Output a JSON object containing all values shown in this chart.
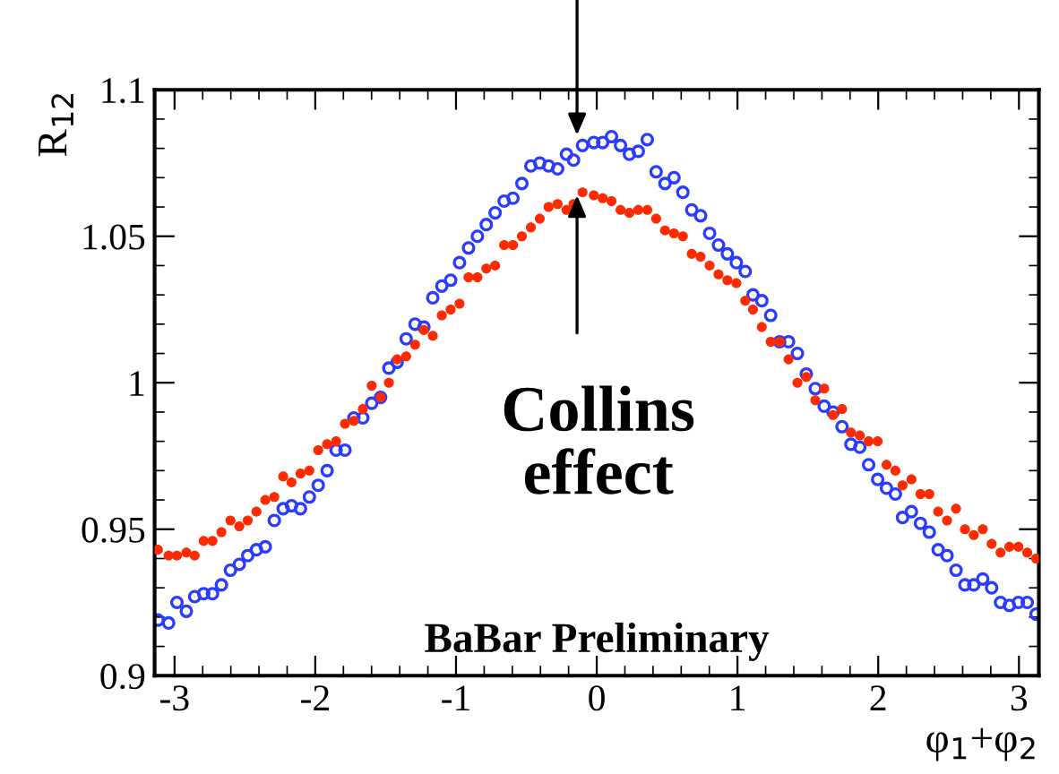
{
  "chart_data": {
    "type": "scatter",
    "xlabel": "φ$_{1}$+φ$_{2}$",
    "ylabel": "R$_{12}$",
    "marker": "circle",
    "xlim": [
      -3.1416,
      3.1416
    ],
    "ylim": [
      0.9,
      1.1
    ],
    "xticks": [
      -3,
      -2,
      -1,
      0,
      1,
      2,
      3
    ],
    "yticks": [
      0.9,
      0.95,
      1,
      1.05,
      1.1
    ],
    "grid": false,
    "legend": false,
    "annotations": [
      {
        "text": "Collins\neffect",
        "x": -0.14,
        "y": 1.064
      },
      "BaBar Preliminary"
    ],
    "series": [
      {
        "color": "#ff2a00",
        "x": [
          -3.118,
          -3.042,
          -2.983,
          -2.916,
          -2.857,
          -2.793,
          -2.73,
          -2.667,
          -2.603,
          -2.54,
          -2.48,
          -2.418,
          -2.355,
          -2.291,
          -2.228,
          -2.169,
          -2.105,
          -2.042,
          -1.979,
          -1.916,
          -1.852,
          -1.789,
          -1.726,
          -1.662,
          -1.599,
          -1.536,
          -1.477,
          -1.418,
          -1.354,
          -1.291,
          -1.228,
          -1.165,
          -1.101,
          -1.038,
          -0.975,
          -0.911,
          -0.848,
          -0.785,
          -0.722,
          -0.658,
          -0.595,
          -0.532,
          -0.468,
          -0.405,
          -0.342,
          -0.278,
          -0.215,
          -0.165,
          -0.101,
          -0.021,
          0.042,
          0.105,
          0.169,
          0.232,
          0.295,
          0.359,
          0.422,
          0.485,
          0.549,
          0.612,
          0.675,
          0.738,
          0.802,
          0.865,
          0.928,
          0.992,
          1.055,
          1.11,
          1.173,
          1.236,
          1.3,
          1.363,
          1.426,
          1.489,
          1.553,
          1.616,
          1.679,
          1.743,
          1.806,
          1.869,
          1.932,
          1.996,
          2.059,
          2.122,
          2.173,
          2.236,
          2.3,
          2.363,
          2.426,
          2.489,
          2.553,
          2.616,
          2.679,
          2.743,
          2.806,
          2.869,
          2.932,
          2.996,
          3.059,
          3.122
        ],
        "values": [
          0.943,
          0.941,
          0.941,
          0.942,
          0.941,
          0.946,
          0.946,
          0.949,
          0.953,
          0.951,
          0.953,
          0.956,
          0.96,
          0.961,
          0.968,
          0.966,
          0.969,
          0.97,
          0.977,
          0.979,
          0.98,
          0.986,
          0.987,
          0.991,
          0.999,
          0.995,
          1.0,
          1.008,
          1.009,
          1.013,
          1.018,
          1.016,
          1.023,
          1.025,
          1.027,
          1.036,
          1.036,
          1.039,
          1.04,
          1.047,
          1.047,
          1.05,
          1.053,
          1.056,
          1.06,
          1.061,
          1.059,
          1.061,
          1.065,
          1.064,
          1.063,
          1.062,
          1.059,
          1.058,
          1.059,
          1.059,
          1.056,
          1.052,
          1.051,
          1.05,
          1.044,
          1.043,
          1.04,
          1.037,
          1.035,
          1.034,
          1.028,
          1.025,
          1.019,
          1.014,
          1.014,
          1.008,
          1.0,
          1.002,
          0.994,
          0.998,
          0.989,
          0.991,
          0.983,
          0.982,
          0.98,
          0.98,
          0.972,
          0.97,
          0.965,
          0.967,
          0.962,
          0.962,
          0.956,
          0.953,
          0.957,
          0.95,
          0.948,
          0.95,
          0.945,
          0.942,
          0.944,
          0.944,
          0.942,
          0.94
        ]
      },
      {
        "color": "#2a3cff",
        "x": [
          -3.118,
          -3.042,
          -2.983,
          -2.916,
          -2.857,
          -2.793,
          -2.73,
          -2.667,
          -2.603,
          -2.54,
          -2.48,
          -2.418,
          -2.355,
          -2.291,
          -2.228,
          -2.169,
          -2.105,
          -2.042,
          -1.979,
          -1.916,
          -1.852,
          -1.789,
          -1.726,
          -1.662,
          -1.599,
          -1.536,
          -1.477,
          -1.418,
          -1.354,
          -1.291,
          -1.228,
          -1.165,
          -1.101,
          -1.038,
          -0.975,
          -0.911,
          -0.848,
          -0.785,
          -0.722,
          -0.658,
          -0.595,
          -0.532,
          -0.468,
          -0.405,
          -0.342,
          -0.278,
          -0.215,
          -0.165,
          -0.101,
          -0.021,
          0.042,
          0.105,
          0.169,
          0.232,
          0.295,
          0.359,
          0.422,
          0.485,
          0.549,
          0.612,
          0.675,
          0.738,
          0.802,
          0.865,
          0.928,
          0.992,
          1.055,
          1.11,
          1.173,
          1.236,
          1.3,
          1.363,
          1.426,
          1.489,
          1.553,
          1.616,
          1.679,
          1.743,
          1.806,
          1.869,
          1.932,
          1.996,
          2.059,
          2.122,
          2.173,
          2.236,
          2.3,
          2.363,
          2.426,
          2.489,
          2.553,
          2.616,
          2.679,
          2.743,
          2.806,
          2.869,
          2.932,
          2.996,
          3.059,
          3.122
        ],
        "values": [
          0.919,
          0.918,
          0.925,
          0.922,
          0.927,
          0.928,
          0.928,
          0.931,
          0.936,
          0.938,
          0.941,
          0.943,
          0.944,
          0.953,
          0.957,
          0.958,
          0.957,
          0.961,
          0.965,
          0.97,
          0.977,
          0.977,
          0.988,
          0.988,
          0.993,
          0.995,
          1.005,
          1.007,
          1.015,
          1.02,
          1.019,
          1.029,
          1.033,
          1.035,
          1.041,
          1.046,
          1.05,
          1.054,
          1.058,
          1.062,
          1.063,
          1.068,
          1.074,
          1.075,
          1.074,
          1.073,
          1.078,
          1.076,
          1.081,
          1.082,
          1.082,
          1.084,
          1.081,
          1.078,
          1.079,
          1.083,
          1.072,
          1.068,
          1.07,
          1.065,
          1.059,
          1.057,
          1.051,
          1.047,
          1.044,
          1.041,
          1.038,
          1.03,
          1.028,
          1.023,
          1.014,
          1.014,
          1.01,
          1.003,
          0.998,
          0.992,
          0.99,
          0.985,
          0.979,
          0.978,
          0.972,
          0.967,
          0.964,
          0.962,
          0.954,
          0.956,
          0.952,
          0.949,
          0.943,
          0.941,
          0.936,
          0.931,
          0.931,
          0.933,
          0.93,
          0.925,
          0.924,
          0.925,
          0.925,
          0.921
        ]
      }
    ]
  }
}
